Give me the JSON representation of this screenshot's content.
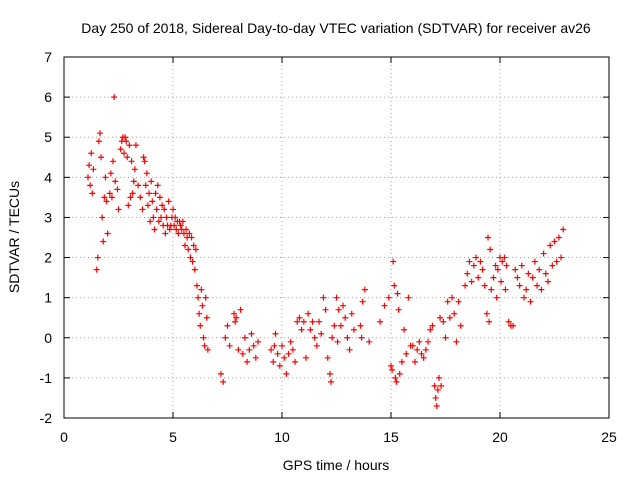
{
  "chart_data": {
    "type": "scatter",
    "title": "Day 250 of 2018, Sidereal Day-to-day VTEC variation (SDTVAR) for receiver av26",
    "xlabel": "GPS time / hours",
    "ylabel": "SDTVAR / TECUs",
    "xlim": [
      0,
      25
    ],
    "ylim": [
      -2,
      7
    ],
    "xticks": [
      "0",
      "5",
      "10",
      "15",
      "20",
      "25"
    ],
    "yticks": [
      "-2",
      "-1",
      "0",
      "1",
      "2",
      "3",
      "4",
      "5",
      "6",
      "7"
    ],
    "grid": true,
    "marker": "+",
    "color": "#ff0000",
    "series": [
      {
        "name": "av26",
        "points": [
          [
            1.1,
            4.0
          ],
          [
            1.15,
            4.3
          ],
          [
            1.2,
            3.8
          ],
          [
            1.25,
            4.6
          ],
          [
            1.3,
            3.6
          ],
          [
            1.35,
            4.2
          ],
          [
            1.5,
            1.7
          ],
          [
            1.55,
            2.0
          ],
          [
            1.6,
            4.9
          ],
          [
            1.65,
            5.1
          ],
          [
            1.7,
            4.5
          ],
          [
            1.75,
            3.0
          ],
          [
            1.8,
            2.4
          ],
          [
            1.85,
            3.5
          ],
          [
            1.9,
            4.0
          ],
          [
            1.95,
            3.4
          ],
          [
            2.0,
            2.6
          ],
          [
            2.1,
            3.6
          ],
          [
            2.15,
            4.1
          ],
          [
            2.2,
            3.5
          ],
          [
            2.25,
            4.4
          ],
          [
            2.3,
            6.0
          ],
          [
            2.35,
            3.9
          ],
          [
            2.45,
            3.7
          ],
          [
            2.5,
            3.2
          ],
          [
            2.6,
            4.7
          ],
          [
            2.65,
            4.9
          ],
          [
            2.7,
            5.0
          ],
          [
            2.75,
            4.6
          ],
          [
            2.8,
            5.0
          ],
          [
            2.85,
            4.9
          ],
          [
            2.9,
            4.5
          ],
          [
            2.95,
            3.3
          ],
          [
            3.0,
            4.8
          ],
          [
            3.05,
            3.5
          ],
          [
            3.1,
            4.4
          ],
          [
            3.15,
            3.6
          ],
          [
            3.2,
            3.9
          ],
          [
            3.25,
            4.2
          ],
          [
            3.3,
            4.8
          ],
          [
            3.4,
            3.8
          ],
          [
            3.5,
            3.5
          ],
          [
            3.6,
            3.2
          ],
          [
            3.65,
            4.5
          ],
          [
            3.7,
            4.4
          ],
          [
            3.75,
            3.8
          ],
          [
            3.8,
            4.1
          ],
          [
            3.85,
            3.3
          ],
          [
            3.9,
            3.6
          ],
          [
            3.95,
            2.9
          ],
          [
            4.0,
            3.9
          ],
          [
            4.05,
            3.4
          ],
          [
            4.1,
            3.0
          ],
          [
            4.15,
            2.7
          ],
          [
            4.2,
            3.6
          ],
          [
            4.25,
            3.2
          ],
          [
            4.3,
            3.8
          ],
          [
            4.35,
            2.9
          ],
          [
            4.4,
            3.5
          ],
          [
            4.45,
            3.0
          ],
          [
            4.5,
            3.3
          ],
          [
            4.55,
            2.8
          ],
          [
            4.6,
            3.2
          ],
          [
            4.65,
            2.6
          ],
          [
            4.7,
            3.0
          ],
          [
            4.75,
            2.8
          ],
          [
            4.8,
            3.4
          ],
          [
            4.85,
            2.7
          ],
          [
            4.9,
            2.8
          ],
          [
            4.95,
            3.0
          ],
          [
            5.0,
            3.2
          ],
          [
            5.05,
            2.8
          ],
          [
            5.1,
            3.0
          ],
          [
            5.15,
            2.7
          ],
          [
            5.2,
            2.9
          ],
          [
            5.25,
            2.6
          ],
          [
            5.3,
            2.9
          ],
          [
            5.35,
            2.8
          ],
          [
            5.4,
            2.7
          ],
          [
            5.45,
            2.9
          ],
          [
            5.5,
            2.6
          ],
          [
            5.55,
            2.3
          ],
          [
            5.6,
            2.7
          ],
          [
            5.65,
            2.5
          ],
          [
            5.7,
            2.2
          ],
          [
            5.75,
            2.6
          ],
          [
            5.8,
            2.0
          ],
          [
            5.85,
            2.5
          ],
          [
            5.9,
            1.9
          ],
          [
            5.95,
            2.3
          ],
          [
            6.0,
            1.7
          ],
          [
            6.05,
            2.2
          ],
          [
            6.1,
            1.3
          ],
          [
            6.15,
            1.0
          ],
          [
            6.2,
            0.6
          ],
          [
            6.25,
            0.3
          ],
          [
            6.3,
            1.2
          ],
          [
            6.35,
            0.8
          ],
          [
            6.4,
            0.0
          ],
          [
            6.45,
            -0.2
          ],
          [
            6.5,
            1.0
          ],
          [
            6.55,
            0.5
          ],
          [
            6.6,
            -0.3
          ],
          [
            7.2,
            -0.9
          ],
          [
            7.3,
            -1.1
          ],
          [
            7.4,
            0.0
          ],
          [
            7.5,
            0.3
          ],
          [
            7.6,
            -0.2
          ],
          [
            7.8,
            0.6
          ],
          [
            7.85,
            0.4
          ],
          [
            7.9,
            0.5
          ],
          [
            8.0,
            -0.3
          ],
          [
            8.1,
            0.7
          ],
          [
            8.2,
            -0.4
          ],
          [
            8.3,
            0.0
          ],
          [
            8.4,
            -0.6
          ],
          [
            8.5,
            -0.3
          ],
          [
            8.6,
            0.1
          ],
          [
            8.7,
            -0.2
          ],
          [
            8.8,
            -0.5
          ],
          [
            8.9,
            -0.1
          ],
          [
            9.5,
            -0.3
          ],
          [
            9.6,
            -0.6
          ],
          [
            9.65,
            -0.2
          ],
          [
            9.7,
            0.1
          ],
          [
            9.8,
            -0.4
          ],
          [
            9.9,
            -0.7
          ],
          [
            10.0,
            -0.2
          ],
          [
            10.1,
            -0.5
          ],
          [
            10.2,
            -0.9
          ],
          [
            10.3,
            -0.4
          ],
          [
            10.4,
            -0.1
          ],
          [
            10.5,
            -0.3
          ],
          [
            10.6,
            -0.6
          ],
          [
            10.7,
            0.4
          ],
          [
            10.8,
            0.5
          ],
          [
            10.9,
            0.2
          ],
          [
            11.0,
            0.4
          ],
          [
            11.1,
            -0.5
          ],
          [
            11.2,
            0.6
          ],
          [
            11.3,
            0.2
          ],
          [
            11.4,
            0.4
          ],
          [
            11.5,
            0.0
          ],
          [
            11.6,
            -0.2
          ],
          [
            11.7,
            0.4
          ],
          [
            11.8,
            0.1
          ],
          [
            11.9,
            1.0
          ],
          [
            12.0,
            0.7
          ],
          [
            12.1,
            -0.5
          ],
          [
            12.2,
            -0.9
          ],
          [
            12.25,
            -1.1
          ],
          [
            12.3,
            0.0
          ],
          [
            12.4,
            0.3
          ],
          [
            12.5,
            1.0
          ],
          [
            12.55,
            -0.1
          ],
          [
            12.6,
            0.7
          ],
          [
            12.7,
            0.3
          ],
          [
            12.8,
            0.8
          ],
          [
            12.9,
            0.5
          ],
          [
            13.0,
            0.0
          ],
          [
            13.1,
            -0.3
          ],
          [
            13.2,
            0.6
          ],
          [
            13.3,
            0.2
          ],
          [
            13.6,
            0.3
          ],
          [
            13.65,
            0.0
          ],
          [
            13.7,
            0.9
          ],
          [
            13.8,
            1.2
          ],
          [
            14.0,
            -0.1
          ],
          [
            14.5,
            0.4
          ],
          [
            14.7,
            0.8
          ],
          [
            14.9,
            1.0
          ],
          [
            15.0,
            -0.7
          ],
          [
            15.05,
            -0.8
          ],
          [
            15.1,
            1.9
          ],
          [
            15.15,
            1.3
          ],
          [
            15.2,
            -1.0
          ],
          [
            15.25,
            -1.1
          ],
          [
            15.3,
            1.1
          ],
          [
            15.35,
            0.7
          ],
          [
            15.4,
            -0.9
          ],
          [
            15.5,
            -0.6
          ],
          [
            15.6,
            0.2
          ],
          [
            15.7,
            -0.4
          ],
          [
            15.8,
            1.0
          ],
          [
            15.9,
            -0.2
          ],
          [
            16.0,
            -0.2
          ],
          [
            16.1,
            -0.6
          ],
          [
            16.2,
            -0.3
          ],
          [
            16.3,
            -0.1
          ],
          [
            16.4,
            -0.4
          ],
          [
            16.5,
            -0.5
          ],
          [
            16.6,
            -0.3
          ],
          [
            16.7,
            -0.1
          ],
          [
            16.8,
            0.2
          ],
          [
            16.9,
            0.3
          ],
          [
            17.0,
            -1.2
          ],
          [
            17.05,
            -1.5
          ],
          [
            17.1,
            -1.7
          ],
          [
            17.15,
            -1.3
          ],
          [
            17.2,
            -1.0
          ],
          [
            17.25,
            0.5
          ],
          [
            17.3,
            -1.2
          ],
          [
            17.4,
            0.4
          ],
          [
            17.5,
            0.0
          ],
          [
            17.6,
            0.9
          ],
          [
            17.7,
            0.5
          ],
          [
            17.8,
            1.0
          ],
          [
            17.9,
            0.6
          ],
          [
            18.0,
            -0.1
          ],
          [
            18.1,
            0.9
          ],
          [
            18.2,
            0.3
          ],
          [
            18.4,
            1.3
          ],
          [
            18.5,
            1.6
          ],
          [
            18.6,
            1.9
          ],
          [
            18.7,
            1.4
          ],
          [
            18.8,
            1.8
          ],
          [
            18.9,
            2.0
          ],
          [
            19.0,
            1.5
          ],
          [
            19.1,
            1.9
          ],
          [
            19.2,
            1.7
          ],
          [
            19.3,
            1.3
          ],
          [
            19.4,
            0.6
          ],
          [
            19.45,
            2.5
          ],
          [
            19.5,
            0.4
          ],
          [
            19.55,
            2.2
          ],
          [
            19.6,
            1.2
          ],
          [
            19.7,
            1.5
          ],
          [
            19.8,
            1.8
          ],
          [
            19.85,
            1.0
          ],
          [
            19.9,
            1.7
          ],
          [
            20.0,
            2.0
          ],
          [
            20.05,
            1.4
          ],
          [
            20.1,
            1.9
          ],
          [
            20.2,
            2.0
          ],
          [
            20.25,
            1.2
          ],
          [
            20.3,
            1.8
          ],
          [
            20.4,
            0.4
          ],
          [
            20.5,
            0.3
          ],
          [
            20.6,
            0.3
          ],
          [
            20.7,
            1.7
          ],
          [
            20.8,
            1.5
          ],
          [
            20.9,
            1.3
          ],
          [
            21.0,
            1.8
          ],
          [
            21.1,
            1.0
          ],
          [
            21.2,
            1.2
          ],
          [
            21.3,
            1.6
          ],
          [
            21.4,
            0.9
          ],
          [
            21.5,
            1.5
          ],
          [
            21.6,
            1.9
          ],
          [
            21.7,
            1.3
          ],
          [
            21.8,
            1.7
          ],
          [
            21.9,
            1.2
          ],
          [
            22.0,
            2.1
          ],
          [
            22.1,
            1.6
          ],
          [
            22.2,
            1.4
          ],
          [
            22.3,
            2.3
          ],
          [
            22.4,
            1.8
          ],
          [
            22.5,
            2.4
          ],
          [
            22.6,
            1.9
          ],
          [
            22.7,
            2.5
          ],
          [
            22.8,
            2.0
          ],
          [
            22.9,
            2.7
          ]
        ]
      }
    ]
  }
}
